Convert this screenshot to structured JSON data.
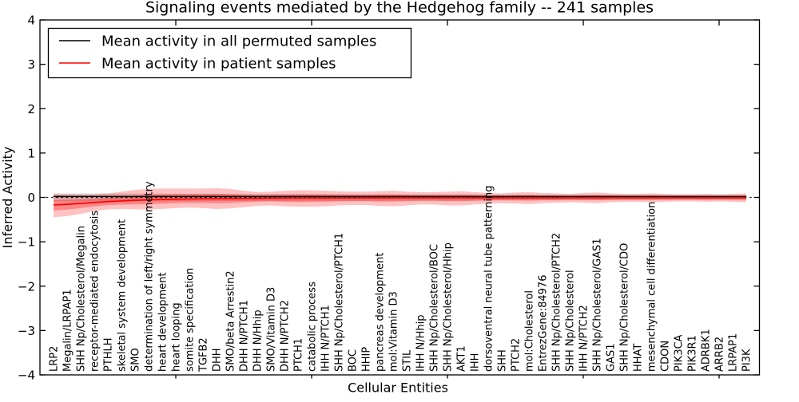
{
  "figure": {
    "background": "#ffffff",
    "frame_color": "#000000"
  },
  "chart_data": {
    "type": "line",
    "title": "Signaling events mediated by the Hedgehog family -- 241 samples",
    "xlabel": "Cellular Entities",
    "ylabel": "Inferred Activity",
    "ylim": [
      -4,
      4
    ],
    "grid": false,
    "legend_position": "upper-left",
    "legend": [
      {
        "label": "Mean activity in all permuted samples",
        "color": "#000000"
      },
      {
        "label": "Mean activity in patient samples",
        "color": "#ff0000"
      }
    ],
    "y_ticks": [
      {
        "v": 4,
        "label": "4"
      },
      {
        "v": 3,
        "label": "3"
      },
      {
        "v": 2,
        "label": "2"
      },
      {
        "v": 1,
        "label": "1"
      },
      {
        "v": 0,
        "label": "0"
      },
      {
        "v": -1,
        "label": "−1"
      },
      {
        "v": -2,
        "label": "−2"
      },
      {
        "v": -3,
        "label": "−3"
      },
      {
        "v": -4,
        "label": "−4"
      }
    ],
    "x_major_tick_positions": [
      10,
      20,
      30,
      40,
      50
    ],
    "categories": [
      "LRP2",
      "Megalin/LRPAP1",
      "SHH Np/Cholesterol/Megalin",
      "receptor-mediated endocytosis",
      "PTHLH",
      "skeletal system development",
      "SMO",
      "determination of left/right symmetry",
      "heart development",
      "heart looping",
      "somite specification",
      "TGFB2",
      "DHH",
      "SMO/beta Arrestin2",
      "DHH N/PTCH1",
      "DHH N/Hhip",
      "SMO/Vitamin D3",
      "DHH N/PTCH2",
      "PTCH1",
      "catabolic process",
      "IHH N/PTCH1",
      "SHH Np/Cholesterol/PTCH1",
      "BOC",
      "HHIP",
      "pancreas development",
      "mol:Vitamin D3",
      "STIL",
      "IHH N/Hhip",
      "SHH Np/Cholesterol/BOC",
      "SHH Np/Cholesterol/Hhip",
      "AKT1",
      "IHH",
      "dorsoventral neural tube patterning",
      "SHH",
      "PTCH2",
      "mol:Cholesterol",
      "EntrezGene:84976",
      "SHH Np/Cholesterol/PTCH2",
      "SHH Np/Cholesterol",
      "IHH N/PTCH2",
      "SHH Np/Cholesterol/GAS1",
      "GAS1",
      "SHH Np/Cholesterol/CDO",
      "HHAT",
      "mesenchymal cell differentiation",
      "CDON",
      "PIK3CA",
      "PIK3R1",
      "ADRBK1",
      "ARRB2",
      "LRPAP1",
      "PI3K"
    ],
    "zero_line": 0,
    "series": [
      {
        "name": "Mean activity in all permuted samples",
        "color": "#000000",
        "constant": 0.02,
        "band": {
          "upper_start": 0.09,
          "upper_end": 0.055,
          "lower_start": -0.09,
          "lower_end": -0.055,
          "color": "#999999"
        }
      },
      {
        "name": "Mean activity in patient samples",
        "color": "#ff0000",
        "values": [
          -0.17,
          -0.155,
          -0.135,
          -0.115,
          -0.095,
          -0.08,
          -0.065,
          -0.055,
          -0.045,
          -0.04,
          -0.035,
          -0.03,
          -0.028,
          -0.025,
          -0.022,
          -0.02,
          -0.018,
          -0.016,
          -0.015,
          -0.014,
          -0.013,
          -0.012,
          -0.012,
          -0.011,
          -0.011,
          -0.01,
          -0.01,
          -0.01,
          -0.01,
          -0.01,
          -0.01,
          -0.01,
          -0.01,
          -0.01,
          -0.01,
          -0.01,
          -0.01,
          -0.01,
          -0.008,
          -0.008,
          -0.008,
          -0.008,
          -0.008,
          -0.008,
          -0.008,
          -0.008,
          -0.008,
          -0.008,
          -0.008,
          -0.008,
          -0.008,
          -0.008
        ],
        "band_upper": [
          0.07,
          0.065,
          0.06,
          0.065,
          0.09,
          0.13,
          0.17,
          0.19,
          0.2,
          0.2,
          0.2,
          0.2,
          0.21,
          0.19,
          0.15,
          0.12,
          0.13,
          0.15,
          0.16,
          0.16,
          0.15,
          0.14,
          0.13,
          0.13,
          0.14,
          0.15,
          0.13,
          0.12,
          0.12,
          0.13,
          0.14,
          0.12,
          0.1,
          0.09,
          0.11,
          0.12,
          0.1,
          0.09,
          0.08,
          0.1,
          0.11,
          0.09,
          0.08,
          0.08,
          0.09,
          0.08,
          0.07,
          0.07,
          0.08,
          0.07,
          0.08,
          0.09
        ],
        "band_lower": [
          -0.45,
          -0.42,
          -0.37,
          -0.31,
          -0.27,
          -0.26,
          -0.27,
          -0.27,
          -0.26,
          -0.24,
          -0.23,
          -0.24,
          -0.26,
          -0.25,
          -0.22,
          -0.19,
          -0.18,
          -0.2,
          -0.21,
          -0.21,
          -0.2,
          -0.18,
          -0.17,
          -0.17,
          -0.19,
          -0.2,
          -0.18,
          -0.16,
          -0.16,
          -0.18,
          -0.18,
          -0.16,
          -0.14,
          -0.13,
          -0.14,
          -0.15,
          -0.13,
          -0.12,
          -0.11,
          -0.12,
          -0.13,
          -0.11,
          -0.1,
          -0.1,
          -0.11,
          -0.1,
          -0.09,
          -0.09,
          -0.1,
          -0.09,
          -0.1,
          -0.11
        ],
        "inner_band_factor": 0.45
      }
    ]
  }
}
